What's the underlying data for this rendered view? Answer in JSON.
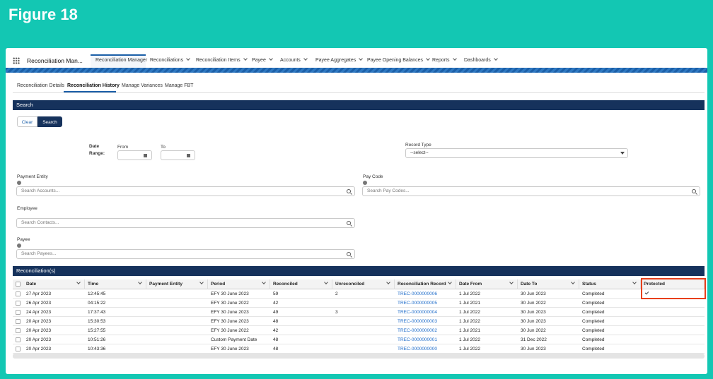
{
  "header": {
    "figure_title": "Figure 18"
  },
  "app": {
    "name": "Reconciliation Man...",
    "nav": [
      "Reconciliation Manager",
      "Reconciliations",
      "Reconciliation Items",
      "Payee",
      "Accounts",
      "Payee Aggregates",
      "Payee Opening Balances",
      "Reports",
      "Dashboards"
    ]
  },
  "tabs": [
    "Reconciliation Details",
    "Reconciliation History",
    "Manage Variances",
    "Manage FBT"
  ],
  "search": {
    "title": "Search",
    "buttons": [
      "Clear",
      "Search"
    ],
    "date_range": {
      "label": "Date Range:",
      "from": "From",
      "to": "To"
    },
    "record_type": {
      "label": "Record Type",
      "placeholder": "--select--"
    },
    "fields": [
      {
        "label": "Payment Entity",
        "placeholder": "Search Accounts..."
      },
      {
        "label": "Pay Code",
        "placeholder": "Search Pay Codes..."
      },
      {
        "label": "Employee",
        "placeholder": "Search Contacts..."
      },
      {
        "label": "Payee",
        "placeholder": "Search Payees..."
      }
    ]
  },
  "table": {
    "title": "Reconciliation(s)",
    "columns": [
      "Date",
      "Time",
      "Payment Entity",
      "Period",
      "Reconciled",
      "Unreconciled",
      "Reconciliation Record",
      "Date From",
      "Date To",
      "Status",
      "Protected"
    ],
    "rows": [
      [
        "27 Apr 2023",
        "12:45:45",
        null,
        "EFY 30 June 2023",
        "59",
        "2",
        "TREC-0000000006",
        "1 Jul 2022",
        "30 Jun 2023",
        "Completed",
        true
      ],
      [
        "26 Apr 2023",
        "04:15:22",
        null,
        "EFY 30 June 2022",
        "42",
        null,
        "TREC-0000000005",
        "1 Jul 2021",
        "30 Jun 2022",
        "Completed",
        false
      ],
      [
        "24 Apr 2023",
        "17:37:43",
        null,
        "EFY 30 June 2023",
        "49",
        "3",
        "TREC-0000000004",
        "1 Jul 2022",
        "30 Jun 2023",
        "Completed",
        false
      ],
      [
        "20 Apr 2023",
        "15:30:53",
        null,
        "EFY 30 June 2023",
        "48",
        null,
        "TREC-0000000003",
        "1 Jul 2022",
        "30 Jun 2023",
        "Completed",
        false
      ],
      [
        "20 Apr 2023",
        "15:27:55",
        null,
        "EFY 30 June 2022",
        "42",
        null,
        "TREC-0000000002",
        "1 Jul 2021",
        "30 Jun 2022",
        "Completed",
        false
      ],
      [
        "20 Apr 2023",
        "10:51:26",
        null,
        "Custom Payment Date",
        "48",
        null,
        "TREC-0000000001",
        "1 Jul 2022",
        "31 Dec 2022",
        "Completed",
        false
      ],
      [
        "20 Apr 2023",
        "10:43:36",
        null,
        "EFY 30 June 2023",
        "48",
        null,
        "TREC-0000000000",
        "1 Jul 2022",
        "30 Jun 2023",
        "Completed",
        false
      ]
    ]
  }
}
